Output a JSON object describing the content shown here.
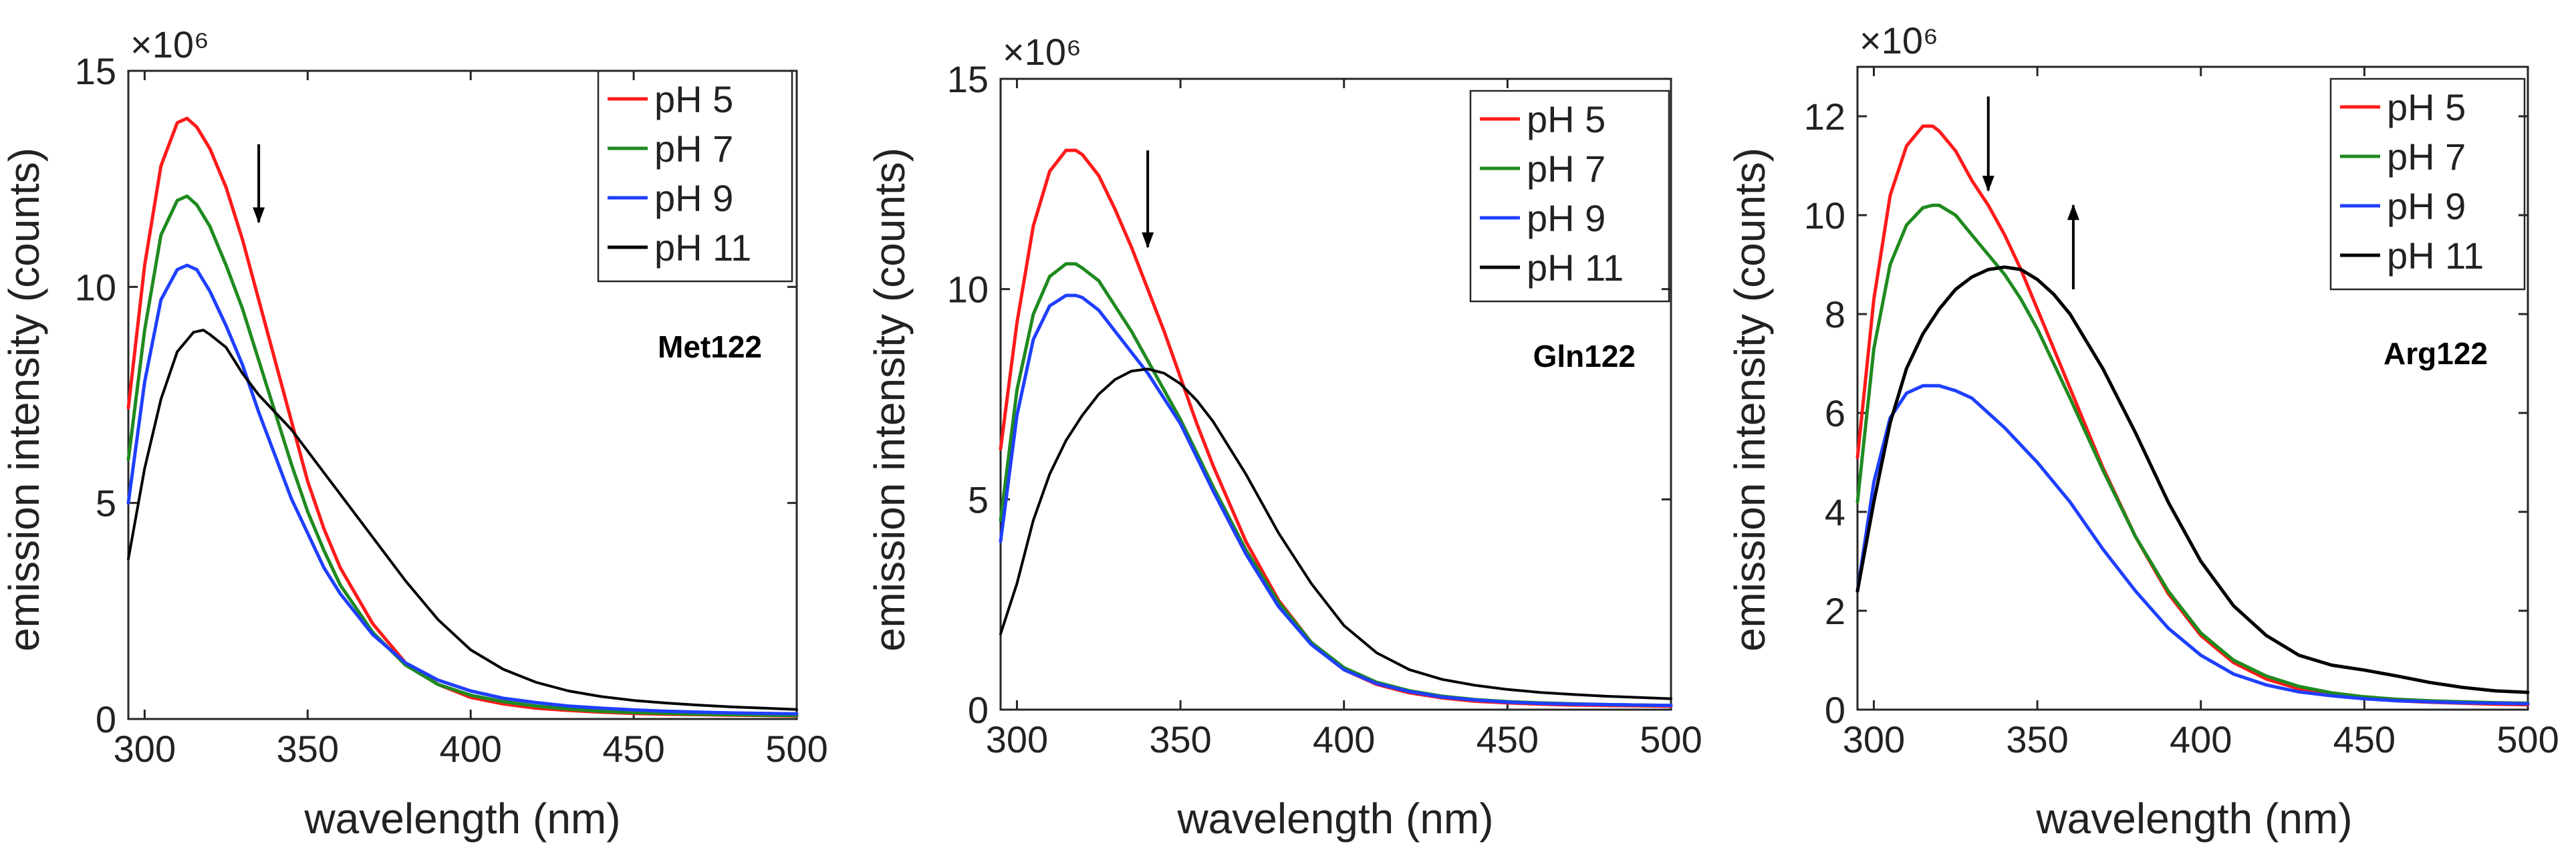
{
  "chart_data": [
    {
      "type": "line",
      "annotation": "Met122",
      "exponent_label": "×10⁶",
      "xlabel": "wavelength (nm)",
      "ylabel": "emission intensity (counts)",
      "xlim": [
        295,
        500
      ],
      "ylim": [
        0,
        15
      ],
      "xticks": [
        "300",
        "350",
        "400",
        "450",
        "500"
      ],
      "yticks": [
        "0",
        "5",
        "10",
        "15"
      ],
      "legend_position": "top-right",
      "arrows": [
        {
          "x": 335,
          "y_from": 13.3,
          "y_to": 11.5,
          "direction": "down"
        }
      ],
      "series": [
        {
          "name": "pH 5",
          "color": "#ff1a1a",
          "width": 5,
          "x": [
            295,
            300,
            305,
            310,
            313,
            316,
            320,
            325,
            330,
            335,
            340,
            345,
            350,
            355,
            360,
            370,
            380,
            390,
            400,
            410,
            420,
            430,
            440,
            450,
            460,
            470,
            480,
            490,
            500
          ],
          "y": [
            7.2,
            10.5,
            12.8,
            13.8,
            13.9,
            13.7,
            13.2,
            12.3,
            11.1,
            9.7,
            8.3,
            6.9,
            5.5,
            4.4,
            3.5,
            2.2,
            1.3,
            0.8,
            0.5,
            0.35,
            0.25,
            0.2,
            0.16,
            0.13,
            0.11,
            0.1,
            0.09,
            0.08,
            0.07
          ]
        },
        {
          "name": "pH 7",
          "color": "#1f8a1f",
          "width": 5,
          "x": [
            295,
            300,
            305,
            310,
            313,
            316,
            320,
            325,
            330,
            335,
            340,
            345,
            350,
            355,
            360,
            370,
            380,
            390,
            400,
            410,
            420,
            430,
            440,
            450,
            460,
            470,
            480,
            490,
            500
          ],
          "y": [
            6.0,
            9.0,
            11.2,
            12.0,
            12.1,
            11.9,
            11.4,
            10.5,
            9.5,
            8.3,
            7.1,
            5.9,
            4.8,
            3.9,
            3.1,
            2.0,
            1.25,
            0.8,
            0.55,
            0.4,
            0.3,
            0.23,
            0.18,
            0.15,
            0.13,
            0.11,
            0.1,
            0.09,
            0.08
          ]
        },
        {
          "name": "pH 9",
          "color": "#1f3fff",
          "width": 5,
          "x": [
            295,
            300,
            305,
            310,
            313,
            316,
            320,
            325,
            330,
            335,
            340,
            345,
            350,
            355,
            360,
            370,
            380,
            390,
            400,
            410,
            420,
            430,
            440,
            450,
            460,
            470,
            480,
            490,
            500
          ],
          "y": [
            5.0,
            7.8,
            9.7,
            10.4,
            10.5,
            10.4,
            9.9,
            9.1,
            8.2,
            7.1,
            6.1,
            5.1,
            4.3,
            3.5,
            2.9,
            1.95,
            1.3,
            0.9,
            0.65,
            0.48,
            0.38,
            0.3,
            0.25,
            0.21,
            0.18,
            0.16,
            0.14,
            0.13,
            0.12
          ]
        },
        {
          "name": "pH 11",
          "color": "#000000",
          "width": 4,
          "x": [
            295,
            300,
            305,
            310,
            315,
            318,
            320,
            325,
            330,
            335,
            340,
            345,
            350,
            355,
            360,
            370,
            380,
            390,
            400,
            410,
            420,
            430,
            440,
            450,
            460,
            470,
            480,
            490,
            500
          ],
          "y": [
            3.7,
            5.8,
            7.4,
            8.5,
            8.95,
            9.0,
            8.9,
            8.6,
            8.0,
            7.5,
            7.1,
            6.7,
            6.2,
            5.7,
            5.2,
            4.2,
            3.2,
            2.3,
            1.6,
            1.15,
            0.85,
            0.65,
            0.52,
            0.43,
            0.37,
            0.32,
            0.28,
            0.25,
            0.22
          ]
        }
      ]
    },
    {
      "type": "line",
      "annotation": "Gln122",
      "exponent_label": "×10⁶",
      "xlabel": "wavelength (nm)",
      "ylabel": "emission intensity (counts)",
      "xlim": [
        295,
        500
      ],
      "ylim": [
        0,
        15
      ],
      "xticks": [
        "300",
        "350",
        "400",
        "450",
        "500"
      ],
      "yticks": [
        "0",
        "5",
        "10",
        "15"
      ],
      "legend_position": "top-right",
      "arrows": [
        {
          "x": 340,
          "y_from": 13.3,
          "y_to": 11.0,
          "direction": "down"
        }
      ],
      "series": [
        {
          "name": "pH 5",
          "color": "#ff1a1a",
          "width": 5,
          "x": [
            295,
            300,
            305,
            310,
            315,
            318,
            320,
            325,
            330,
            335,
            340,
            345,
            350,
            355,
            360,
            370,
            380,
            390,
            400,
            410,
            420,
            430,
            440,
            450,
            460,
            470,
            480,
            490,
            500
          ],
          "y": [
            6.2,
            9.2,
            11.5,
            12.8,
            13.3,
            13.3,
            13.2,
            12.7,
            11.9,
            11.0,
            10.0,
            9.0,
            7.9,
            6.8,
            5.8,
            4.0,
            2.6,
            1.6,
            0.95,
            0.6,
            0.4,
            0.28,
            0.2,
            0.16,
            0.13,
            0.11,
            0.1,
            0.09,
            0.08
          ]
        },
        {
          "name": "pH 7",
          "color": "#1f8a1f",
          "width": 5,
          "x": [
            295,
            300,
            305,
            310,
            315,
            318,
            320,
            325,
            330,
            335,
            340,
            345,
            350,
            355,
            360,
            370,
            380,
            390,
            400,
            410,
            420,
            430,
            440,
            450,
            460,
            470,
            480,
            490,
            500
          ],
          "y": [
            4.5,
            7.6,
            9.4,
            10.3,
            10.6,
            10.6,
            10.5,
            10.2,
            9.6,
            9.0,
            8.3,
            7.6,
            6.9,
            6.1,
            5.3,
            3.8,
            2.55,
            1.6,
            1.0,
            0.65,
            0.45,
            0.32,
            0.24,
            0.19,
            0.16,
            0.14,
            0.12,
            0.11,
            0.1
          ]
        },
        {
          "name": "pH 9",
          "color": "#1f3fff",
          "width": 5,
          "x": [
            295,
            300,
            305,
            310,
            315,
            318,
            320,
            325,
            330,
            335,
            340,
            345,
            350,
            355,
            360,
            370,
            380,
            390,
            400,
            410,
            420,
            430,
            440,
            450,
            460,
            470,
            480,
            490,
            500
          ],
          "y": [
            4.0,
            7.0,
            8.8,
            9.6,
            9.85,
            9.85,
            9.8,
            9.5,
            9.0,
            8.5,
            8.0,
            7.4,
            6.8,
            6.0,
            5.2,
            3.7,
            2.45,
            1.55,
            0.95,
            0.62,
            0.43,
            0.3,
            0.23,
            0.18,
            0.15,
            0.13,
            0.12,
            0.11,
            0.1
          ]
        },
        {
          "name": "pH 11",
          "color": "#000000",
          "width": 4,
          "x": [
            295,
            300,
            305,
            310,
            315,
            320,
            325,
            330,
            335,
            340,
            345,
            350,
            355,
            360,
            370,
            380,
            390,
            400,
            410,
            420,
            430,
            440,
            450,
            460,
            470,
            480,
            490,
            500
          ],
          "y": [
            1.8,
            3.0,
            4.5,
            5.6,
            6.4,
            7.0,
            7.5,
            7.85,
            8.05,
            8.1,
            8.0,
            7.75,
            7.35,
            6.85,
            5.6,
            4.2,
            3.0,
            2.0,
            1.35,
            0.95,
            0.72,
            0.58,
            0.48,
            0.41,
            0.36,
            0.32,
            0.29,
            0.26
          ]
        }
      ]
    },
    {
      "type": "line",
      "annotation": "Arg122",
      "exponent_label": "×10⁶",
      "xlabel": "wavelength (nm)",
      "ylabel": "emission intensity (counts)",
      "xlim": [
        295,
        500
      ],
      "ylim": [
        0,
        13
      ],
      "xticks": [
        "300",
        "350",
        "400",
        "450",
        "500"
      ],
      "yticks": [
        "0",
        "2",
        "4",
        "6",
        "8",
        "10",
        "12"
      ],
      "legend_position": "top-right",
      "arrows": [
        {
          "x": 335,
          "y_from": 12.4,
          "y_to": 10.5,
          "direction": "down"
        },
        {
          "x": 361,
          "y_from": 8.5,
          "y_to": 10.2,
          "direction": "up"
        }
      ],
      "series": [
        {
          "name": "pH 5",
          "color": "#ff1a1a",
          "width": 5,
          "x": [
            295,
            300,
            305,
            310,
            315,
            318,
            320,
            325,
            330,
            335,
            340,
            345,
            350,
            355,
            360,
            370,
            380,
            390,
            400,
            410,
            420,
            430,
            440,
            450,
            460,
            470,
            480,
            490,
            500
          ],
          "y": [
            5.1,
            8.3,
            10.4,
            11.4,
            11.8,
            11.8,
            11.7,
            11.3,
            10.7,
            10.2,
            9.6,
            8.9,
            8.1,
            7.3,
            6.5,
            4.9,
            3.5,
            2.35,
            1.5,
            0.95,
            0.62,
            0.42,
            0.3,
            0.23,
            0.18,
            0.15,
            0.13,
            0.11,
            0.1
          ]
        },
        {
          "name": "pH 7",
          "color": "#1f8a1f",
          "width": 5,
          "x": [
            295,
            300,
            305,
            310,
            315,
            318,
            320,
            325,
            330,
            335,
            340,
            345,
            350,
            355,
            360,
            370,
            380,
            390,
            400,
            410,
            420,
            430,
            440,
            450,
            460,
            470,
            480,
            490,
            500
          ],
          "y": [
            4.2,
            7.3,
            9.0,
            9.8,
            10.15,
            10.2,
            10.2,
            10.0,
            9.6,
            9.2,
            8.8,
            8.3,
            7.7,
            7.0,
            6.3,
            4.85,
            3.5,
            2.4,
            1.55,
            1.0,
            0.68,
            0.47,
            0.34,
            0.26,
            0.21,
            0.18,
            0.16,
            0.14,
            0.13
          ]
        },
        {
          "name": "pH 9",
          "color": "#1f3fff",
          "width": 5,
          "x": [
            295,
            300,
            305,
            310,
            315,
            320,
            325,
            330,
            335,
            340,
            345,
            350,
            355,
            360,
            370,
            380,
            390,
            400,
            410,
            420,
            430,
            440,
            450,
            460,
            470,
            480,
            490,
            500
          ],
          "y": [
            2.4,
            4.6,
            5.9,
            6.4,
            6.55,
            6.55,
            6.45,
            6.3,
            6.0,
            5.7,
            5.35,
            5.0,
            4.6,
            4.2,
            3.25,
            2.4,
            1.65,
            1.1,
            0.72,
            0.5,
            0.36,
            0.28,
            0.22,
            0.18,
            0.16,
            0.14,
            0.13,
            0.12
          ]
        },
        {
          "name": "pH 11",
          "color": "#000000",
          "width": 5,
          "x": [
            295,
            300,
            305,
            310,
            315,
            320,
            325,
            330,
            335,
            340,
            345,
            350,
            355,
            360,
            370,
            380,
            390,
            400,
            410,
            420,
            430,
            440,
            450,
            460,
            470,
            480,
            490,
            500
          ],
          "y": [
            2.4,
            4.2,
            5.8,
            6.9,
            7.6,
            8.1,
            8.5,
            8.75,
            8.9,
            8.95,
            8.9,
            8.7,
            8.4,
            8.0,
            6.9,
            5.6,
            4.2,
            3.0,
            2.1,
            1.5,
            1.1,
            0.9,
            0.8,
            0.68,
            0.55,
            0.45,
            0.38,
            0.35
          ]
        }
      ]
    }
  ]
}
